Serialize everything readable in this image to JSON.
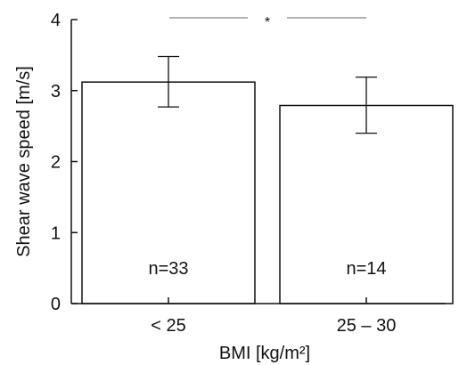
{
  "chart_data": {
    "type": "bar",
    "title": "",
    "xlabel": "BMI [kg/m²]",
    "ylabel": "Shear wave speed [m/s]",
    "ylim": [
      0,
      4
    ],
    "yticks": [
      "0",
      "1",
      "2",
      "3",
      "4"
    ],
    "grid": false,
    "categories": [
      "< 25",
      "25 – 30"
    ],
    "values": [
      3.12,
      2.79
    ],
    "error_low": [
      2.77,
      2.4
    ],
    "error_high": [
      3.48,
      3.19
    ],
    "annotations": [
      "n=33",
      "n=14"
    ],
    "significance": {
      "label": "*",
      "between": [
        "< 25",
        "25 – 30"
      ]
    },
    "colors": {
      "bar_fill": "#ffffff",
      "stroke": "#111111",
      "bracket": "#666666"
    }
  }
}
